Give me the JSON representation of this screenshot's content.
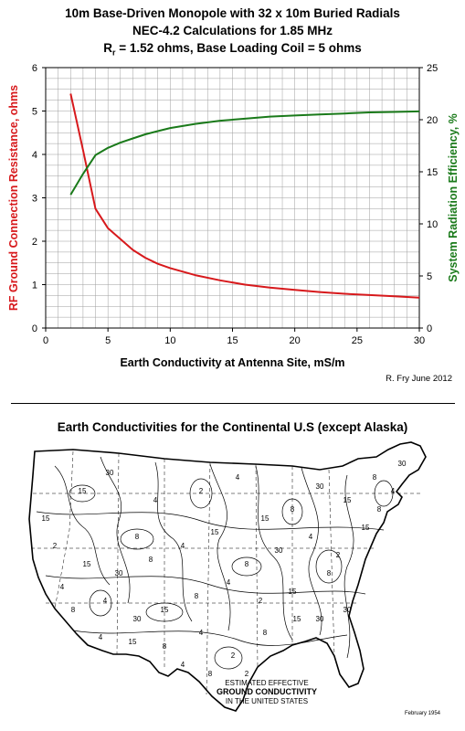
{
  "chart": {
    "title_line1": "10m Base-Driven Monopole with 32 x 10m Buried Radials",
    "title_line2": "NEC-4.2 Calculations for 1.85 MHz",
    "title_line3_prefix": "R",
    "title_line3_sub": "r",
    "title_line3_rest": " = 1.52 ohms, Base Loading Coil = 5 ohms",
    "credit": "R. Fry June 2012"
  },
  "colors": {
    "resistance": "#d7191c",
    "efficiency": "#1a7a1a",
    "grid": "#9e9e9e",
    "axis": "#000000"
  },
  "chart_data": {
    "type": "line",
    "title": "10m Base-Driven Monopole with 32 x 10m Buried Radials",
    "subtitle": "NEC-4.2 Calculations for 1.85 MHz",
    "xlabel": "Earth Conductivity at Antenna Site, mS/m",
    "ylabel": "RF Ground Connection Resistance, ohms",
    "y2label": "System Radiation Efficiency, %",
    "xlim": [
      0,
      30
    ],
    "ylim": [
      0,
      6
    ],
    "y2lim": [
      0,
      25
    ],
    "x_ticks": [
      0,
      5,
      10,
      15,
      20,
      25,
      30
    ],
    "y_ticks": [
      0,
      1,
      2,
      3,
      4,
      5,
      6
    ],
    "y2_ticks": [
      0,
      5,
      10,
      15,
      20,
      25
    ],
    "grid": true,
    "series": [
      {
        "name": "RF Ground Connection Resistance, ohms",
        "axis": "left",
        "color": "#d7191c",
        "x": [
          2,
          3,
          4,
          5,
          6,
          7,
          8,
          9,
          10,
          12,
          14,
          16,
          18,
          20,
          22,
          24,
          26,
          28,
          30
        ],
        "y": [
          5.4,
          4.1,
          2.75,
          2.3,
          2.05,
          1.8,
          1.62,
          1.48,
          1.38,
          1.22,
          1.1,
          1.0,
          0.93,
          0.88,
          0.83,
          0.79,
          0.76,
          0.73,
          0.7
        ]
      },
      {
        "name": "System Radiation Efficiency, %",
        "axis": "right",
        "color": "#1a7a1a",
        "x": [
          2,
          3,
          4,
          5,
          6,
          7,
          8,
          9,
          10,
          12,
          14,
          16,
          18,
          20,
          22,
          24,
          26,
          28,
          30
        ],
        "y": [
          12.8,
          14.8,
          16.6,
          17.3,
          17.8,
          18.2,
          18.6,
          18.9,
          19.2,
          19.6,
          19.9,
          20.1,
          20.3,
          20.4,
          20.5,
          20.6,
          20.7,
          20.75,
          20.8
        ]
      }
    ]
  },
  "map": {
    "title": "Earth Conductivities for the Continental U.S (except Alaska)",
    "caption_line1": "ESTIMATED EFFECTIVE",
    "caption_line2": "GROUND CONDUCTIVITY",
    "caption_line3": "IN THE UNITED STATES",
    "date": "February 1954",
    "region_labels": [
      "15",
      "30",
      "8",
      "4",
      "2",
      "4",
      "15",
      "8",
      "30",
      "15",
      "8",
      "4",
      "2",
      "15",
      "30",
      "8",
      "4",
      "15",
      "8",
      "30",
      "4",
      "2",
      "15",
      "8",
      "4",
      "30",
      "15",
      "8",
      "4",
      "2",
      "15",
      "8",
      "30",
      "4",
      "15",
      "8",
      "4",
      "2",
      "8",
      "15",
      "30",
      "4",
      "8",
      "2",
      "15",
      "4",
      "8",
      "30"
    ]
  }
}
